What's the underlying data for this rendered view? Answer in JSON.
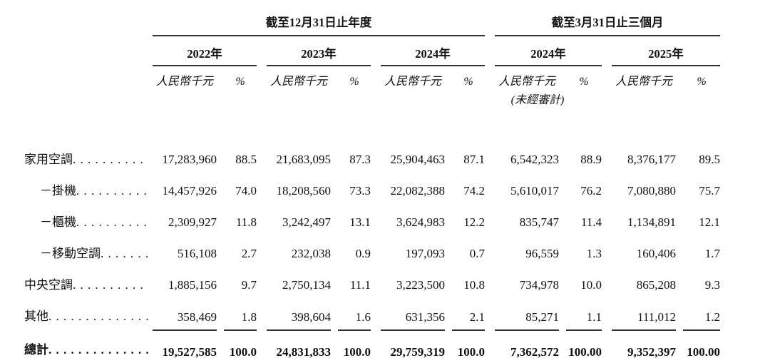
{
  "colors": {
    "text": "#111111",
    "rule": "#333333"
  },
  "table": {
    "groups": [
      {
        "title": "截至12月31日止年度"
      },
      {
        "title": "截至3月31日止三個月"
      }
    ],
    "years": [
      "2022年",
      "2023年",
      "2024年",
      "2024年",
      "2025年"
    ],
    "unit_label": "人民幣千元",
    "percent_label": "%",
    "unaudited_note": "(未經審計)",
    "rows": [
      {
        "label": "家用空調",
        "sub": false,
        "underline": false,
        "values": [
          "17,283,960",
          "88.5",
          "21,683,095",
          "87.3",
          "25,904,463",
          "87.1",
          "6,542,323",
          "88.9",
          "8,376,177",
          "89.5"
        ]
      },
      {
        "label": "－掛機",
        "sub": true,
        "underline": false,
        "values": [
          "14,457,926",
          "74.0",
          "18,208,560",
          "73.3",
          "22,082,388",
          "74.2",
          "5,610,017",
          "76.2",
          "7,080,880",
          "75.7"
        ]
      },
      {
        "label": "－櫃機",
        "sub": true,
        "underline": false,
        "values": [
          "2,309,927",
          "11.8",
          "3,242,497",
          "13.1",
          "3,624,983",
          "12.2",
          "835,747",
          "11.4",
          "1,134,891",
          "12.1"
        ]
      },
      {
        "label": "－移動空調",
        "sub": true,
        "underline": false,
        "values": [
          "516,108",
          "2.7",
          "232,038",
          "0.9",
          "197,093",
          "0.7",
          "96,559",
          "1.3",
          "160,406",
          "1.7"
        ]
      },
      {
        "label": "中央空調",
        "sub": false,
        "underline": false,
        "values": [
          "1,885,156",
          "9.7",
          "2,750,134",
          "11.1",
          "3,223,500",
          "10.8",
          "734,978",
          "10.0",
          "865,208",
          "9.3"
        ]
      },
      {
        "label": "其他",
        "sub": false,
        "underline": true,
        "values": [
          "358,469",
          "1.8",
          "398,604",
          "1.6",
          "631,356",
          "2.1",
          "85,271",
          "1.1",
          "111,012",
          "1.2"
        ]
      }
    ],
    "total": {
      "label": "總計",
      "values": [
        "19,527,585",
        "100.0",
        "24,831,833",
        "100.0",
        "29,759,319",
        "100.0",
        "7,362,572",
        "100.00",
        "9,352,397",
        "100.00"
      ]
    }
  }
}
